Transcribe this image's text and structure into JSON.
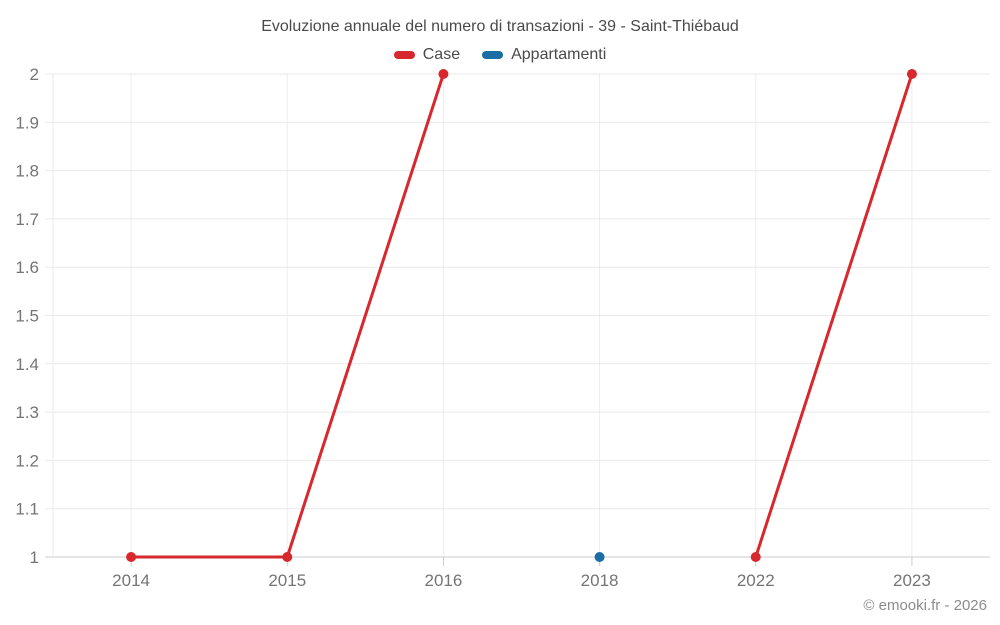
{
  "page": {
    "attribution": "© emooki.fr - 2026"
  },
  "legend": [
    {
      "label": "Case",
      "color": "#d7282d"
    },
    {
      "label": "Appartamenti",
      "color": "#1b6da6"
    }
  ],
  "chart_data": {
    "type": "line",
    "title": "Evoluzione annuale del numero di transazioni - 39 - Saint-Thiébaud",
    "categories": [
      "2014",
      "2015",
      "2016",
      "2018",
      "2022",
      "2023"
    ],
    "series": [
      {
        "name": "Case",
        "color": "#d7282d",
        "values": [
          1,
          1,
          2,
          null,
          1,
          2
        ]
      },
      {
        "name": "Appartamenti",
        "color": "#1b6da6",
        "values": [
          null,
          null,
          null,
          1,
          null,
          null
        ]
      }
    ],
    "xlabel": "",
    "ylabel": "",
    "ylim": [
      1,
      2
    ],
    "ytick_step": 0.1,
    "grid": true,
    "legend_position": "top"
  }
}
